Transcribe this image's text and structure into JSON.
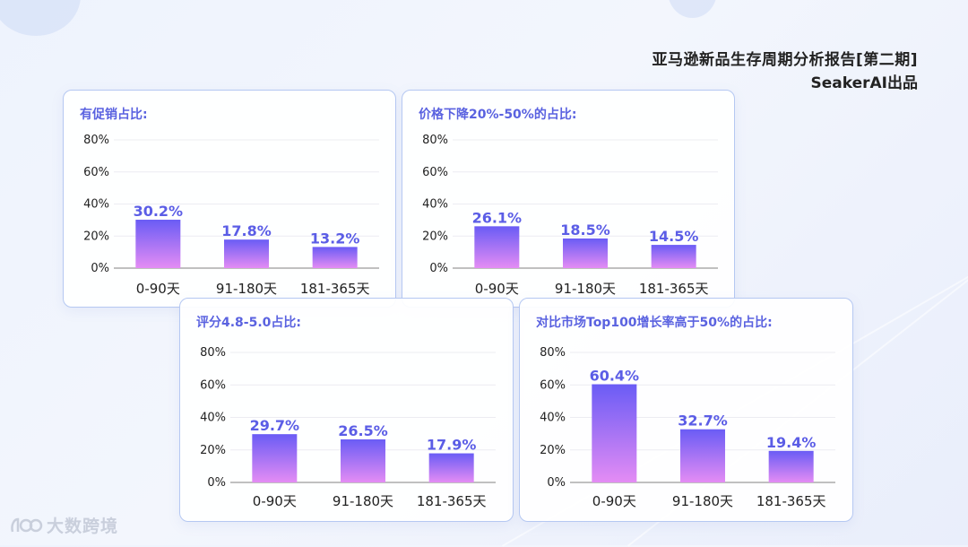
{
  "header": {
    "title": "亚马逊新品生存周期分析报告[第二期]",
    "subtitle": "SeakerAI出品"
  },
  "logo": {
    "text": "大数跨境"
  },
  "colors": {
    "bar_top": "#6a5cf5",
    "bar_bottom": "#e48cf4",
    "label": "#5b5de6",
    "border": "#b5c8f2"
  },
  "chart_data": [
    {
      "type": "bar",
      "title": "有促销占比:",
      "categories": [
        "0-90天",
        "91-180天",
        "181-365天"
      ],
      "values": [
        30.2,
        17.8,
        13.2
      ],
      "data_labels": [
        "30.2%",
        "17.8%",
        "13.2%"
      ],
      "yticks": [
        "0%",
        "20%",
        "40%",
        "60%",
        "80%"
      ],
      "ylim": [
        0,
        80
      ],
      "grid": true
    },
    {
      "type": "bar",
      "title": "价格下降20%-50%的占比:",
      "categories": [
        "0-90天",
        "91-180天",
        "181-365天"
      ],
      "values": [
        26.1,
        18.5,
        14.5
      ],
      "data_labels": [
        "26.1%",
        "18.5%",
        "14.5%"
      ],
      "yticks": [
        "0%",
        "20%",
        "40%",
        "60%",
        "80%"
      ],
      "ylim": [
        0,
        80
      ],
      "grid": true
    },
    {
      "type": "bar",
      "title": "评分4.8-5.0占比:",
      "categories": [
        "0-90天",
        "91-180天",
        "181-365天"
      ],
      "values": [
        29.7,
        26.5,
        17.9
      ],
      "data_labels": [
        "29.7%",
        "26.5%",
        "17.9%"
      ],
      "yticks": [
        "0%",
        "20%",
        "40%",
        "60%",
        "80%"
      ],
      "ylim": [
        0,
        80
      ],
      "grid": true
    },
    {
      "type": "bar",
      "title": "对比市场Top100增长率高于50%的占比:",
      "categories": [
        "0-90天",
        "91-180天",
        "181-365天"
      ],
      "values": [
        60.4,
        32.7,
        19.4
      ],
      "data_labels": [
        "60.4%",
        "32.7%",
        "19.4%"
      ],
      "yticks": [
        "0%",
        "20%",
        "40%",
        "60%",
        "80%"
      ],
      "ylim": [
        0,
        80
      ],
      "grid": true
    }
  ]
}
